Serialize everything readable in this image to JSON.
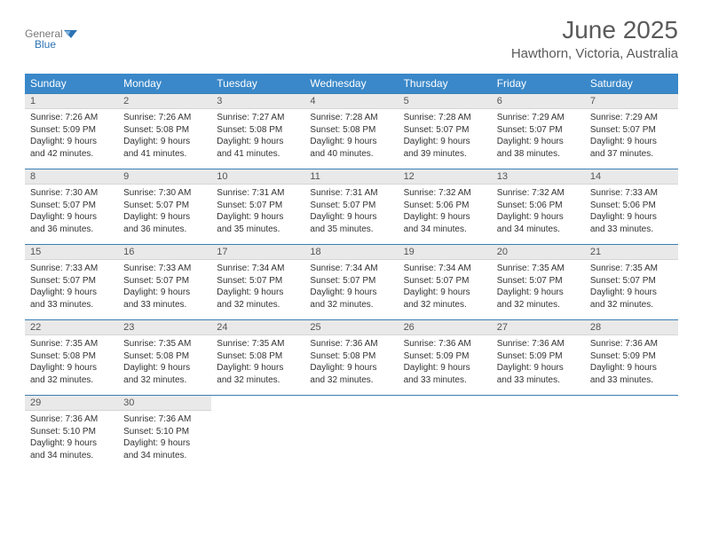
{
  "header": {
    "logo_text_1": "General",
    "logo_text_2": "Blue",
    "month_title": "June 2025",
    "location": "Hawthorn, Victoria, Australia"
  },
  "colors": {
    "header_bg": "#3a88c9",
    "header_text": "#ffffff",
    "daynum_bg": "#e9e9e9",
    "border": "#3a7fb5",
    "text": "#333333",
    "logo_gray": "#7a7a7a",
    "logo_blue": "#2b73b5"
  },
  "weekdays": [
    "Sunday",
    "Monday",
    "Tuesday",
    "Wednesday",
    "Thursday",
    "Friday",
    "Saturday"
  ],
  "weeks": [
    [
      {
        "num": "1",
        "sunrise": "Sunrise: 7:26 AM",
        "sunset": "Sunset: 5:09 PM",
        "day1": "Daylight: 9 hours",
        "day2": "and 42 minutes."
      },
      {
        "num": "2",
        "sunrise": "Sunrise: 7:26 AM",
        "sunset": "Sunset: 5:08 PM",
        "day1": "Daylight: 9 hours",
        "day2": "and 41 minutes."
      },
      {
        "num": "3",
        "sunrise": "Sunrise: 7:27 AM",
        "sunset": "Sunset: 5:08 PM",
        "day1": "Daylight: 9 hours",
        "day2": "and 41 minutes."
      },
      {
        "num": "4",
        "sunrise": "Sunrise: 7:28 AM",
        "sunset": "Sunset: 5:08 PM",
        "day1": "Daylight: 9 hours",
        "day2": "and 40 minutes."
      },
      {
        "num": "5",
        "sunrise": "Sunrise: 7:28 AM",
        "sunset": "Sunset: 5:07 PM",
        "day1": "Daylight: 9 hours",
        "day2": "and 39 minutes."
      },
      {
        "num": "6",
        "sunrise": "Sunrise: 7:29 AM",
        "sunset": "Sunset: 5:07 PM",
        "day1": "Daylight: 9 hours",
        "day2": "and 38 minutes."
      },
      {
        "num": "7",
        "sunrise": "Sunrise: 7:29 AM",
        "sunset": "Sunset: 5:07 PM",
        "day1": "Daylight: 9 hours",
        "day2": "and 37 minutes."
      }
    ],
    [
      {
        "num": "8",
        "sunrise": "Sunrise: 7:30 AM",
        "sunset": "Sunset: 5:07 PM",
        "day1": "Daylight: 9 hours",
        "day2": "and 36 minutes."
      },
      {
        "num": "9",
        "sunrise": "Sunrise: 7:30 AM",
        "sunset": "Sunset: 5:07 PM",
        "day1": "Daylight: 9 hours",
        "day2": "and 36 minutes."
      },
      {
        "num": "10",
        "sunrise": "Sunrise: 7:31 AM",
        "sunset": "Sunset: 5:07 PM",
        "day1": "Daylight: 9 hours",
        "day2": "and 35 minutes."
      },
      {
        "num": "11",
        "sunrise": "Sunrise: 7:31 AM",
        "sunset": "Sunset: 5:07 PM",
        "day1": "Daylight: 9 hours",
        "day2": "and 35 minutes."
      },
      {
        "num": "12",
        "sunrise": "Sunrise: 7:32 AM",
        "sunset": "Sunset: 5:06 PM",
        "day1": "Daylight: 9 hours",
        "day2": "and 34 minutes."
      },
      {
        "num": "13",
        "sunrise": "Sunrise: 7:32 AM",
        "sunset": "Sunset: 5:06 PM",
        "day1": "Daylight: 9 hours",
        "day2": "and 34 minutes."
      },
      {
        "num": "14",
        "sunrise": "Sunrise: 7:33 AM",
        "sunset": "Sunset: 5:06 PM",
        "day1": "Daylight: 9 hours",
        "day2": "and 33 minutes."
      }
    ],
    [
      {
        "num": "15",
        "sunrise": "Sunrise: 7:33 AM",
        "sunset": "Sunset: 5:07 PM",
        "day1": "Daylight: 9 hours",
        "day2": "and 33 minutes."
      },
      {
        "num": "16",
        "sunrise": "Sunrise: 7:33 AM",
        "sunset": "Sunset: 5:07 PM",
        "day1": "Daylight: 9 hours",
        "day2": "and 33 minutes."
      },
      {
        "num": "17",
        "sunrise": "Sunrise: 7:34 AM",
        "sunset": "Sunset: 5:07 PM",
        "day1": "Daylight: 9 hours",
        "day2": "and 32 minutes."
      },
      {
        "num": "18",
        "sunrise": "Sunrise: 7:34 AM",
        "sunset": "Sunset: 5:07 PM",
        "day1": "Daylight: 9 hours",
        "day2": "and 32 minutes."
      },
      {
        "num": "19",
        "sunrise": "Sunrise: 7:34 AM",
        "sunset": "Sunset: 5:07 PM",
        "day1": "Daylight: 9 hours",
        "day2": "and 32 minutes."
      },
      {
        "num": "20",
        "sunrise": "Sunrise: 7:35 AM",
        "sunset": "Sunset: 5:07 PM",
        "day1": "Daylight: 9 hours",
        "day2": "and 32 minutes."
      },
      {
        "num": "21",
        "sunrise": "Sunrise: 7:35 AM",
        "sunset": "Sunset: 5:07 PM",
        "day1": "Daylight: 9 hours",
        "day2": "and 32 minutes."
      }
    ],
    [
      {
        "num": "22",
        "sunrise": "Sunrise: 7:35 AM",
        "sunset": "Sunset: 5:08 PM",
        "day1": "Daylight: 9 hours",
        "day2": "and 32 minutes."
      },
      {
        "num": "23",
        "sunrise": "Sunrise: 7:35 AM",
        "sunset": "Sunset: 5:08 PM",
        "day1": "Daylight: 9 hours",
        "day2": "and 32 minutes."
      },
      {
        "num": "24",
        "sunrise": "Sunrise: 7:35 AM",
        "sunset": "Sunset: 5:08 PM",
        "day1": "Daylight: 9 hours",
        "day2": "and 32 minutes."
      },
      {
        "num": "25",
        "sunrise": "Sunrise: 7:36 AM",
        "sunset": "Sunset: 5:08 PM",
        "day1": "Daylight: 9 hours",
        "day2": "and 32 minutes."
      },
      {
        "num": "26",
        "sunrise": "Sunrise: 7:36 AM",
        "sunset": "Sunset: 5:09 PM",
        "day1": "Daylight: 9 hours",
        "day2": "and 33 minutes."
      },
      {
        "num": "27",
        "sunrise": "Sunrise: 7:36 AM",
        "sunset": "Sunset: 5:09 PM",
        "day1": "Daylight: 9 hours",
        "day2": "and 33 minutes."
      },
      {
        "num": "28",
        "sunrise": "Sunrise: 7:36 AM",
        "sunset": "Sunset: 5:09 PM",
        "day1": "Daylight: 9 hours",
        "day2": "and 33 minutes."
      }
    ],
    [
      {
        "num": "29",
        "sunrise": "Sunrise: 7:36 AM",
        "sunset": "Sunset: 5:10 PM",
        "day1": "Daylight: 9 hours",
        "day2": "and 34 minutes."
      },
      {
        "num": "30",
        "sunrise": "Sunrise: 7:36 AM",
        "sunset": "Sunset: 5:10 PM",
        "day1": "Daylight: 9 hours",
        "day2": "and 34 minutes."
      },
      null,
      null,
      null,
      null,
      null
    ]
  ]
}
